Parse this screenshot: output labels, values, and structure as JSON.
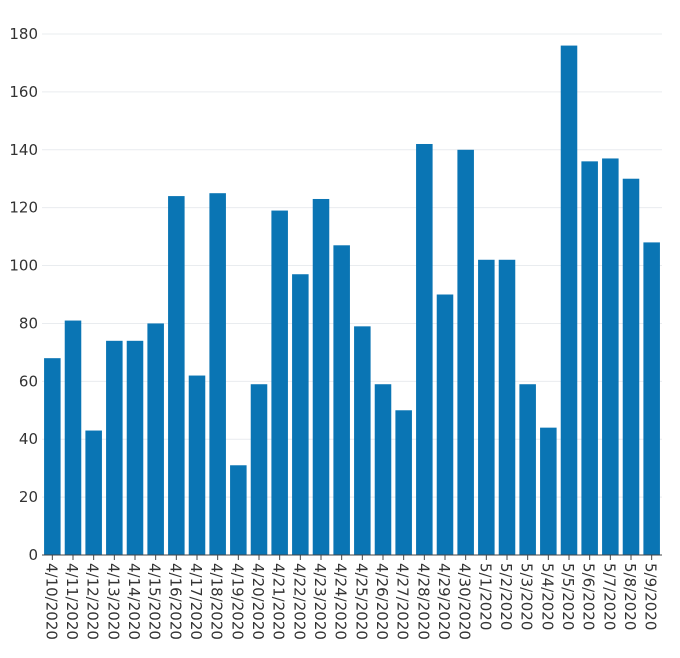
{
  "chart_data": {
    "type": "bar",
    "categories": [
      "4/10/2020",
      "4/11/2020",
      "4/12/2020",
      "4/13/2020",
      "4/14/2020",
      "4/15/2020",
      "4/16/2020",
      "4/17/2020",
      "4/18/2020",
      "4/19/2020",
      "4/20/2020",
      "4/21/2020",
      "4/22/2020",
      "4/23/2020",
      "4/24/2020",
      "4/25/2020",
      "4/26/2020",
      "4/27/2020",
      "4/28/2020",
      "4/29/2020",
      "4/30/2020",
      "5/1/2020",
      "5/2/2020",
      "5/3/2020",
      "5/4/2020",
      "5/5/2020",
      "5/6/2020",
      "5/7/2020",
      "5/8/2020",
      "5/9/2020"
    ],
    "values": [
      68,
      81,
      43,
      74,
      74,
      80,
      124,
      62,
      125,
      31,
      59,
      119,
      97,
      123,
      107,
      79,
      59,
      50,
      142,
      90,
      140,
      102,
      102,
      59,
      44,
      176,
      136,
      137,
      130,
      108
    ],
    "yticks": [
      0,
      20,
      40,
      60,
      80,
      100,
      120,
      140,
      160,
      180
    ],
    "ylim": [
      0,
      180
    ],
    "title": "",
    "xlabel": "",
    "ylabel": "",
    "grid": true,
    "bar_color": "#0a75b4"
  }
}
